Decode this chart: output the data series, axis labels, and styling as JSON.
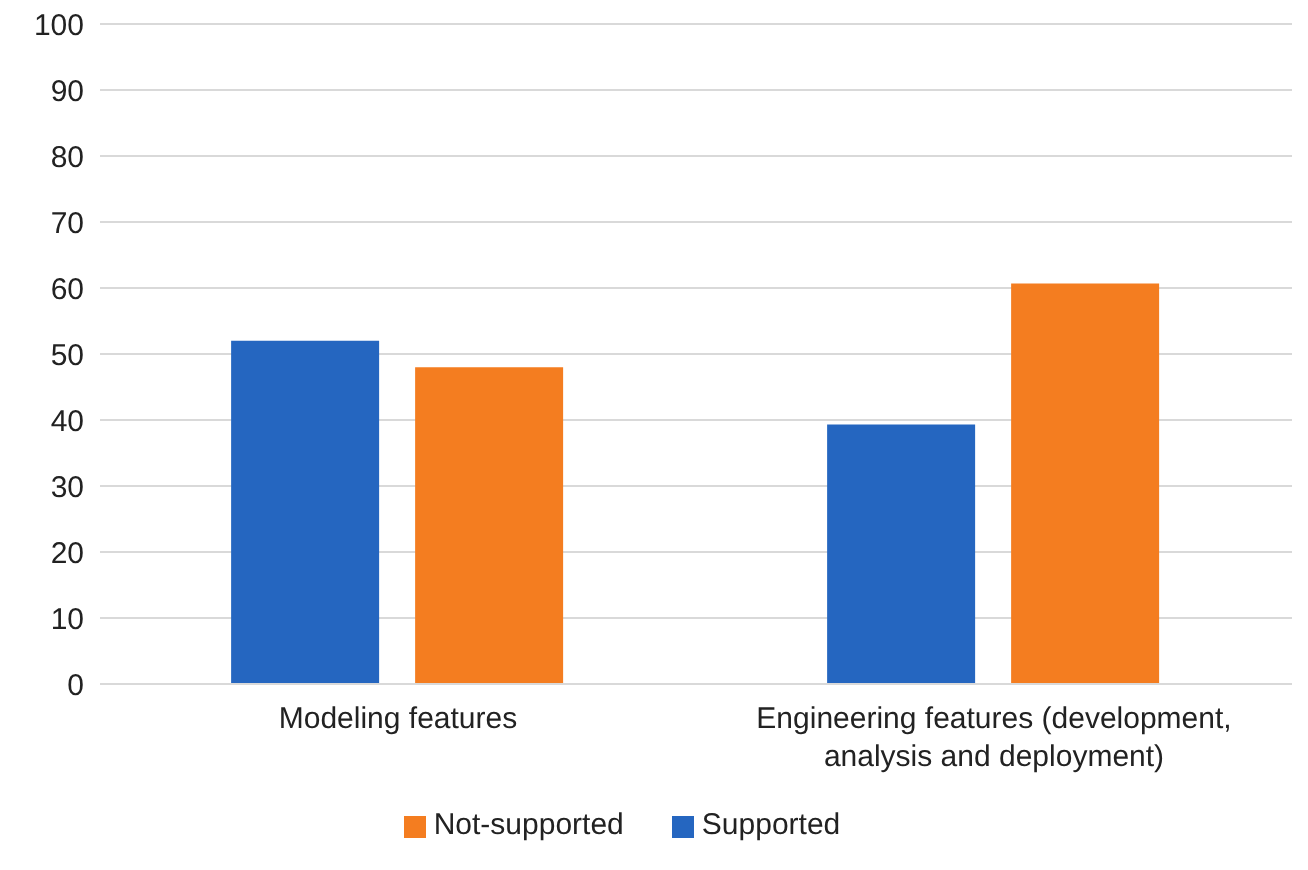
{
  "chart_data": {
    "type": "bar",
    "categories": [
      "Modeling features",
      "Engineering features (development, analysis and deployment)"
    ],
    "series": [
      {
        "name": "Supported",
        "color": "#2566c0",
        "values": [
          52,
          39.3
        ]
      },
      {
        "name": "Not-supported",
        "color": "#f47d20",
        "values": [
          48,
          60.7
        ]
      }
    ],
    "ylim": [
      0,
      100
    ],
    "yticks": [
      0,
      10,
      20,
      30,
      40,
      50,
      60,
      70,
      80,
      90,
      100
    ],
    "grid": "y",
    "legend": "bottom"
  }
}
